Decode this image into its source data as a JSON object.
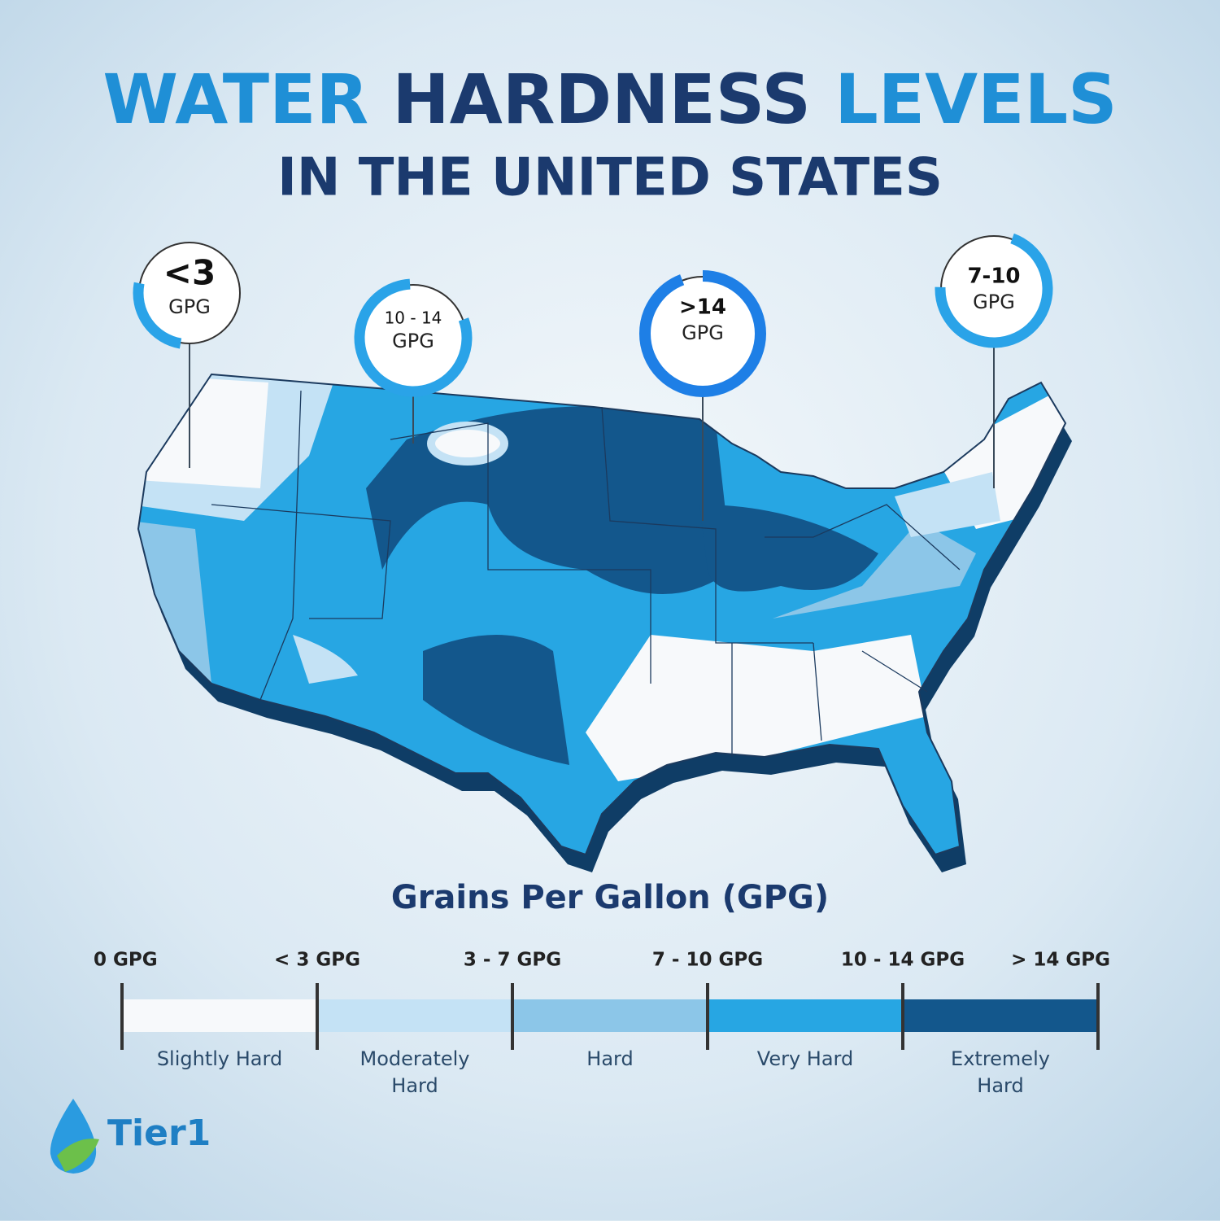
{
  "title": {
    "line1": [
      "WATER",
      "HARDNESS",
      "LEVELS"
    ],
    "line2": "IN THE UNITED STATES"
  },
  "callouts": [
    {
      "value": "<3",
      "unit": "GPG"
    },
    {
      "value": "10 - 14",
      "unit": "GPG"
    },
    {
      "value": ">14",
      "unit": "GPG"
    },
    {
      "value": "7-10",
      "unit": "GPG"
    }
  ],
  "legend": {
    "title": "Grains Per Gallon (GPG)",
    "ticks": [
      "0 GPG",
      "< 3 GPG",
      "3 - 7 GPG",
      "7 - 10 GPG",
      "10 - 14 GPG",
      "> 14 GPG"
    ],
    "segments": [
      {
        "label": [
          "Slightly Hard"
        ],
        "color": "#f7f9fb"
      },
      {
        "label": [
          "Moderately",
          "Hard"
        ],
        "color": "#c4e2f5"
      },
      {
        "label": [
          "Hard"
        ],
        "color": "#8cc6e8"
      },
      {
        "label": [
          "Very Hard"
        ],
        "color": "#27a6e3"
      },
      {
        "label": [
          "Extremely",
          "Hard"
        ],
        "color": "#13578c"
      }
    ]
  },
  "logo": "Tier1"
}
